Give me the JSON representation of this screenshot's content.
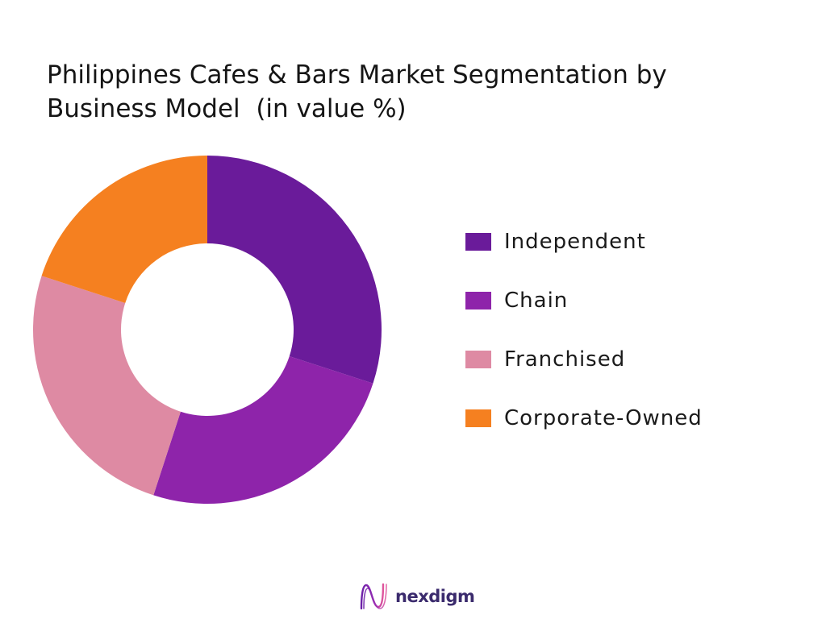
{
  "chart_data": {
    "type": "pie",
    "donut": true,
    "title": "Philippines Cafes & Bars Market Segmentation by Business Model  (in value %)",
    "categories": [
      "Independent",
      "Chain",
      "Franchised",
      "Corporate-Owned"
    ],
    "values": [
      30,
      25,
      25,
      20
    ],
    "colors": [
      "#6a1b9a",
      "#8e24aa",
      "#de8aa3",
      "#f58020"
    ],
    "legend": "right"
  },
  "logo": {
    "text": "nexdigm",
    "icon": "nexdigm-wave-icon",
    "color": "#3b2b6d"
  }
}
